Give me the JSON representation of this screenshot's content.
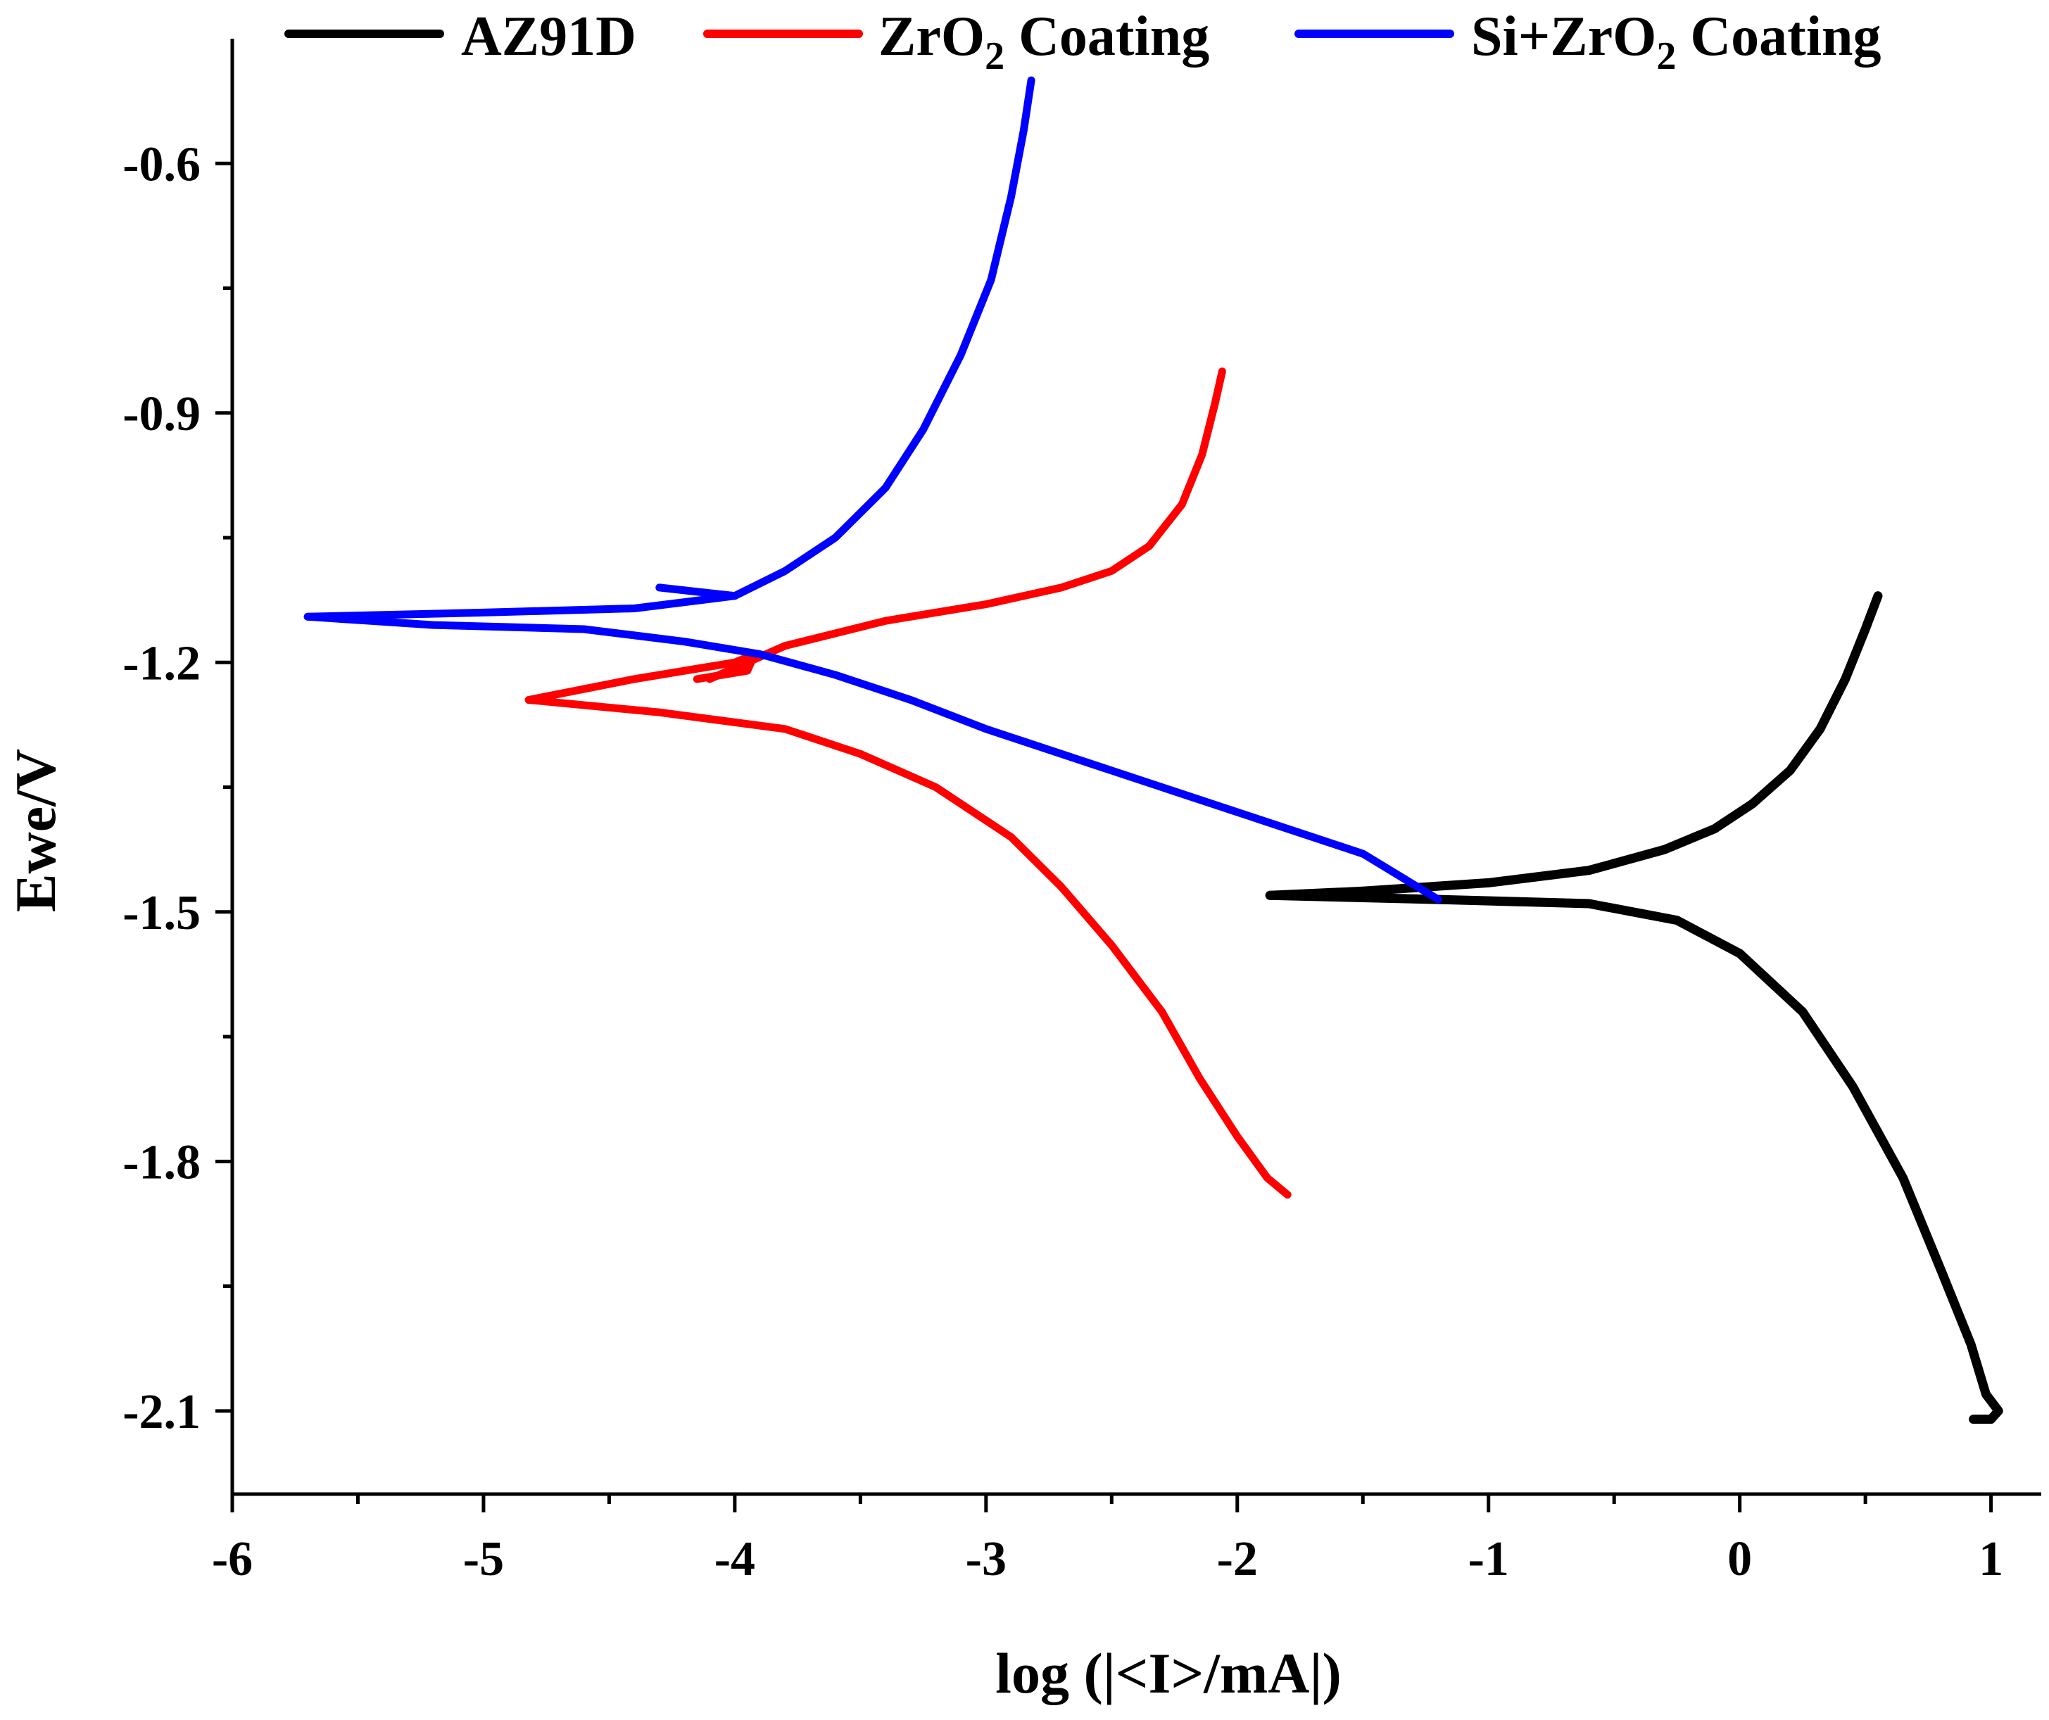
{
  "chart_data": {
    "type": "line",
    "title": "",
    "xlabel": "log (|<I>/mA|)",
    "ylabel": "Ewe/V",
    "xlim": [
      -6,
      1.2
    ],
    "ylim": [
      -2.2,
      -0.45
    ],
    "xticks": [
      {
        "value": -6,
        "label": "-6"
      },
      {
        "value": -5,
        "label": "-5"
      },
      {
        "value": -4,
        "label": "-4"
      },
      {
        "value": -3,
        "label": "-3"
      },
      {
        "value": -2,
        "label": "-2"
      },
      {
        "value": -1,
        "label": "-1"
      },
      {
        "value": 0,
        "label": "0"
      },
      {
        "value": 1,
        "label": "1"
      }
    ],
    "yticks": [
      {
        "value": -0.6,
        "label": "-0.6"
      },
      {
        "value": -0.9,
        "label": "-0.9"
      },
      {
        "value": -1.2,
        "label": "-1.2"
      },
      {
        "value": -1.5,
        "label": "-1.5"
      },
      {
        "value": -1.8,
        "label": "-1.8"
      },
      {
        "value": -2.1,
        "label": "-2.1"
      }
    ],
    "legend_position": "top",
    "series": [
      {
        "name": "AZ91D",
        "name_main": "AZ91D",
        "name_sub": "",
        "name_tail": "",
        "color": "#000000",
        "points": [
          [
            -1.87,
            -1.48
          ],
          [
            -1.5,
            -1.475
          ],
          [
            -1.0,
            -1.465
          ],
          [
            -0.6,
            -1.45
          ],
          [
            -0.3,
            -1.425
          ],
          [
            -0.1,
            -1.4
          ],
          [
            0.05,
            -1.37
          ],
          [
            0.2,
            -1.33
          ],
          [
            0.32,
            -1.28
          ],
          [
            0.42,
            -1.22
          ],
          [
            0.5,
            -1.16
          ],
          [
            0.55,
            -1.12
          ]
        ],
        "points_lower": [
          [
            -1.87,
            -1.48
          ],
          [
            -1.2,
            -1.485
          ],
          [
            -0.6,
            -1.49
          ],
          [
            -0.25,
            -1.51
          ],
          [
            0.0,
            -1.55
          ],
          [
            0.25,
            -1.62
          ],
          [
            0.45,
            -1.71
          ],
          [
            0.65,
            -1.82
          ],
          [
            0.8,
            -1.93
          ],
          [
            0.92,
            -2.02
          ],
          [
            0.98,
            -2.08
          ],
          [
            1.03,
            -2.1
          ],
          [
            1.0,
            -2.11
          ],
          [
            0.93,
            -2.11
          ]
        ]
      },
      {
        "name": "ZrO2 Coating",
        "name_main": "ZrO",
        "name_sub": "2",
        "name_tail": " Coating",
        "color": "#ff0000",
        "points": [
          [
            -4.1,
            -1.22
          ],
          [
            -3.8,
            -1.18
          ],
          [
            -3.4,
            -1.15
          ],
          [
            -3.0,
            -1.13
          ],
          [
            -2.7,
            -1.11
          ],
          [
            -2.5,
            -1.09
          ],
          [
            -2.35,
            -1.06
          ],
          [
            -2.22,
            -1.01
          ],
          [
            -2.14,
            -0.95
          ],
          [
            -2.09,
            -0.89
          ],
          [
            -2.06,
            -0.85
          ]
        ],
        "points_middle": [
          [
            -4.82,
            -1.245
          ],
          [
            -4.4,
            -1.22
          ],
          [
            -4.0,
            -1.2
          ],
          [
            -3.92,
            -1.19
          ],
          [
            -3.95,
            -1.21
          ],
          [
            -4.15,
            -1.22
          ]
        ],
        "points_lower": [
          [
            -4.82,
            -1.245
          ],
          [
            -4.3,
            -1.26
          ],
          [
            -3.8,
            -1.28
          ],
          [
            -3.5,
            -1.31
          ],
          [
            -3.2,
            -1.35
          ],
          [
            -2.9,
            -1.41
          ],
          [
            -2.7,
            -1.47
          ],
          [
            -2.5,
            -1.54
          ],
          [
            -2.3,
            -1.62
          ],
          [
            -2.15,
            -1.7
          ],
          [
            -2.0,
            -1.77
          ],
          [
            -1.88,
            -1.82
          ],
          [
            -1.8,
            -1.84
          ]
        ]
      },
      {
        "name": "Si+ZrO2 Coating",
        "name_main": "Si+ZrO",
        "name_sub": "2",
        "name_tail": " Coating",
        "color": "#0000ff",
        "points": [
          [
            -5.7,
            -1.145
          ],
          [
            -5.0,
            -1.14
          ],
          [
            -4.4,
            -1.135
          ],
          [
            -4.0,
            -1.12
          ],
          [
            -3.8,
            -1.09
          ],
          [
            -3.6,
            -1.05
          ],
          [
            -3.4,
            -0.99
          ],
          [
            -3.25,
            -0.92
          ],
          [
            -3.1,
            -0.83
          ],
          [
            -2.98,
            -0.74
          ],
          [
            -2.9,
            -0.64
          ],
          [
            -2.85,
            -0.56
          ],
          [
            -2.82,
            -0.5
          ]
        ],
        "points_branch": [
          [
            -4.3,
            -1.11
          ],
          [
            -4.0,
            -1.12
          ]
        ],
        "points_lower": [
          [
            -5.7,
            -1.145
          ],
          [
            -5.2,
            -1.155
          ],
          [
            -4.6,
            -1.16
          ],
          [
            -4.2,
            -1.175
          ],
          [
            -3.9,
            -1.19
          ],
          [
            -3.6,
            -1.215
          ],
          [
            -3.3,
            -1.245
          ],
          [
            -3.0,
            -1.28
          ],
          [
            -2.6,
            -1.32
          ],
          [
            -2.2,
            -1.36
          ],
          [
            -1.8,
            -1.4
          ],
          [
            -1.5,
            -1.43
          ],
          [
            -1.2,
            -1.485
          ]
        ]
      }
    ]
  }
}
